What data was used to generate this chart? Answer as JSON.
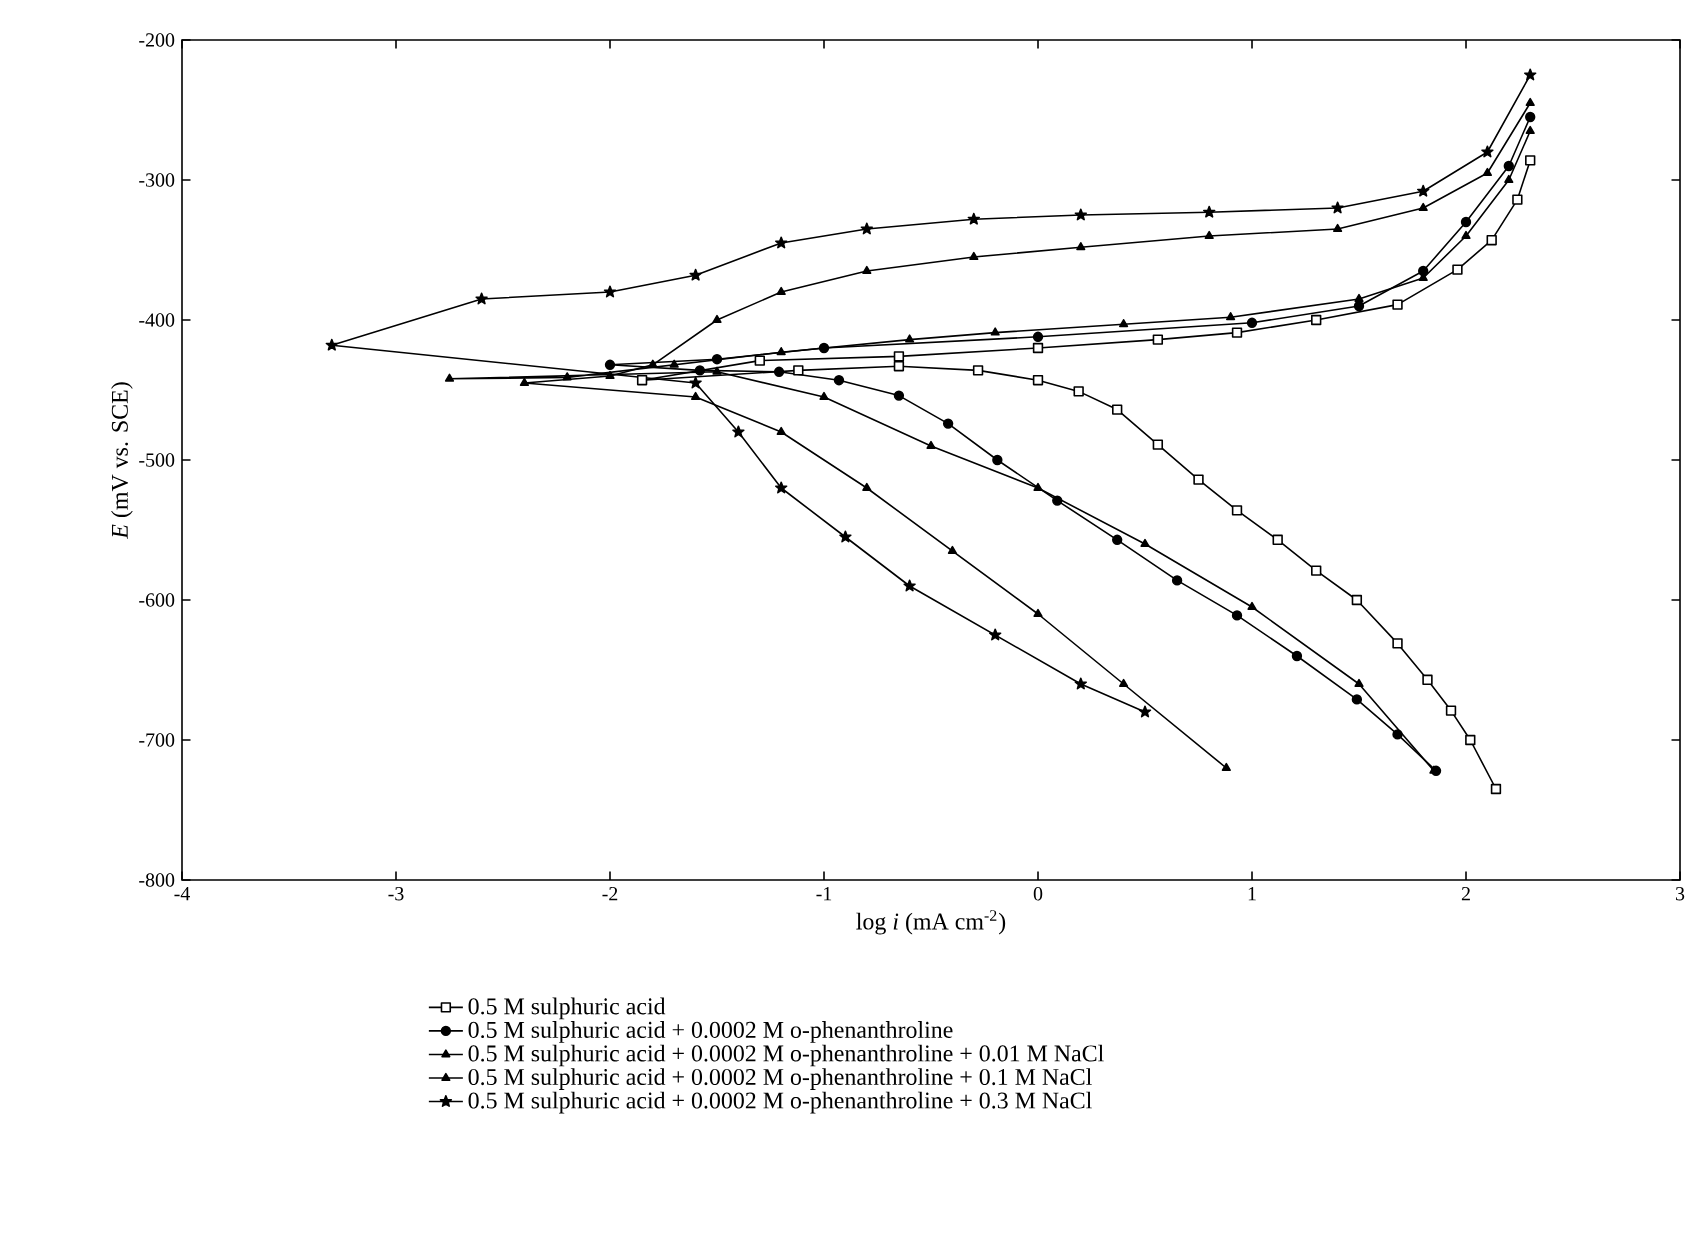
{
  "chart_data": {
    "type": "line",
    "xlabel": "log *i* (mA cm$^{-2}$)",
    "ylabel": "*E* (mV vs. SCE)",
    "xlim": [
      -4,
      3
    ],
    "ylim": [
      -800,
      -200
    ],
    "xticks": [
      -4,
      -3,
      -2,
      -1,
      0,
      1,
      2,
      3
    ],
    "yticks": [
      -800,
      -700,
      -600,
      -500,
      -400,
      -300,
      -200
    ],
    "legend": "bottom",
    "grid": false,
    "line_style": "solid",
    "series": [
      {
        "name": "0.5 M sulphuric acid",
        "color": "#000000",
        "marker": "square",
        "x": [
          2.14,
          2.02,
          1.93,
          1.82,
          1.68,
          1.49,
          1.3,
          1.12,
          0.93,
          0.75,
          0.56,
          0.37,
          0.19,
          0,
          -0.28,
          -0.65,
          -1.12,
          -1.85,
          -1.3,
          -0.65,
          0,
          0.56,
          0.93,
          1.3,
          1.68,
          1.96,
          2.12,
          2.24,
          2.3
        ],
        "values": [
          -735,
          -700,
          -679,
          -657,
          -631,
          -600,
          -579,
          -557,
          -536,
          -514,
          -489,
          -464,
          -451,
          -443,
          -436,
          -433,
          -436,
          -443,
          -429,
          -426,
          -420,
          -414,
          -409,
          -400,
          -389,
          -364,
          -343,
          -314,
          -286
        ]
      },
      {
        "name": "0.5 M sulphuric acid + 0.0002 M o-phenanthroline",
        "color": "#000000",
        "marker": "circle",
        "x": [
          1.86,
          1.68,
          1.49,
          1.21,
          0.93,
          0.65,
          0.37,
          0.09,
          -0.19,
          -0.42,
          -0.65,
          -0.93,
          -1.21,
          -1.58,
          -2.0,
          -1.5,
          -1,
          0,
          1,
          1.5,
          1.8,
          2.0,
          2.2,
          2.3
        ],
        "values": [
          -722,
          -696,
          -671,
          -640,
          -611,
          -586,
          -557,
          -529,
          -500,
          -474,
          -454,
          -443,
          -437,
          -436,
          -432,
          -428,
          -420,
          -412,
          -402,
          -390,
          -365,
          -330,
          -290,
          -255
        ]
      },
      {
        "name": "0.5 M sulphuric acid + 0.0002 M o-phenanthroline + 0.01 M NaCl",
        "color": "#000000",
        "marker": "triangle",
        "x": [
          1.85,
          1.5,
          1,
          0.5,
          0,
          -0.5,
          -1,
          -1.5,
          -2.75,
          -2.2,
          -1.7,
          -1.2,
          -0.6,
          -0.2,
          0.4,
          0.9,
          1.5,
          1.8,
          2.0,
          2.2,
          2.3
        ],
        "values": [
          -722,
          -660,
          -605,
          -560,
          -520,
          -490,
          -455,
          -437,
          -442,
          -441,
          -432,
          -423,
          -414,
          -409,
          -403,
          -398,
          -385,
          -370,
          -340,
          -300,
          -265
        ]
      },
      {
        "name": "0.5 M sulphuric acid + 0.0002 M o-phenanthroline + 0.1 M NaCl",
        "color": "#000000",
        "marker": "triangle",
        "x": [
          0.88,
          0.4,
          0,
          -0.4,
          -0.8,
          -1.2,
          -1.6,
          -2.4,
          -2.0,
          -1.8,
          -1.5,
          -1.2,
          -0.8,
          -0.3,
          0.2,
          0.8,
          1.4,
          1.8,
          2.1,
          2.3
        ],
        "values": [
          -720,
          -660,
          -610,
          -565,
          -520,
          -480,
          -455,
          -445,
          -440,
          -432,
          -400,
          -380,
          -365,
          -355,
          -348,
          -340,
          -335,
          -320,
          -295,
          -245
        ]
      },
      {
        "name": "0.5 M sulphuric acid + 0.0002 M o-phenanthroline + 0.3 M NaCl",
        "color": "#000000",
        "marker": "star",
        "x": [
          0.5,
          0.2,
          -0.2,
          -0.6,
          -0.9,
          -1.2,
          -1.4,
          -1.6,
          -3.3,
          -2.6,
          -2.0,
          -1.6,
          -1.2,
          -0.8,
          -0.3,
          0.2,
          0.8,
          1.4,
          1.8,
          2.1,
          2.3
        ],
        "values": [
          -680,
          -660,
          -625,
          -590,
          -555,
          -520,
          -480,
          -445,
          -418,
          -385,
          -380,
          -368,
          -345,
          -335,
          -328,
          -325,
          -323,
          -320,
          -308,
          -280,
          -225
        ]
      }
    ]
  }
}
